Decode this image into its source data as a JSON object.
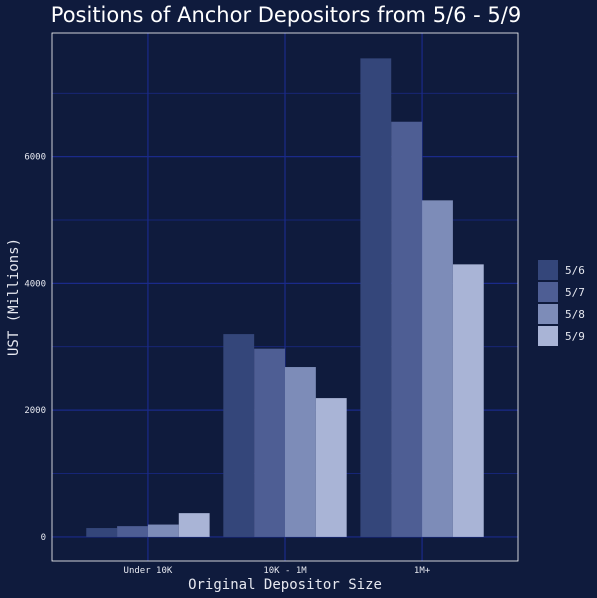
{
  "chart_data": {
    "type": "bar",
    "title": "Positions of Anchor Depositors from 5/6 - 5/9",
    "xlabel": "Original Depositor Size",
    "ylabel": "UST (Millions)",
    "categories": [
      "Under 10K",
      "10K - 1M",
      "1M+"
    ],
    "series": [
      {
        "name": "5/6",
        "color": "#34467a",
        "values": [
          140,
          3200,
          7550
        ]
      },
      {
        "name": "5/7",
        "color": "#4e5e94",
        "values": [
          170,
          2970,
          6550
        ]
      },
      {
        "name": "5/8",
        "color": "#7d8cb8",
        "values": [
          195,
          2680,
          5310
        ]
      },
      {
        "name": "5/9",
        "color": "#a9b4d6",
        "values": [
          375,
          2190,
          4300
        ]
      }
    ],
    "ylim": [
      -380,
      7950
    ],
    "yticks": [
      0,
      2000,
      4000,
      6000
    ],
    "grid": true,
    "legend_position": "right",
    "colors": {
      "background": "#0f1b3d",
      "gridline": "#1a2a8a",
      "panel_border": "#ffffff",
      "text": "#e6e8f0"
    }
  }
}
